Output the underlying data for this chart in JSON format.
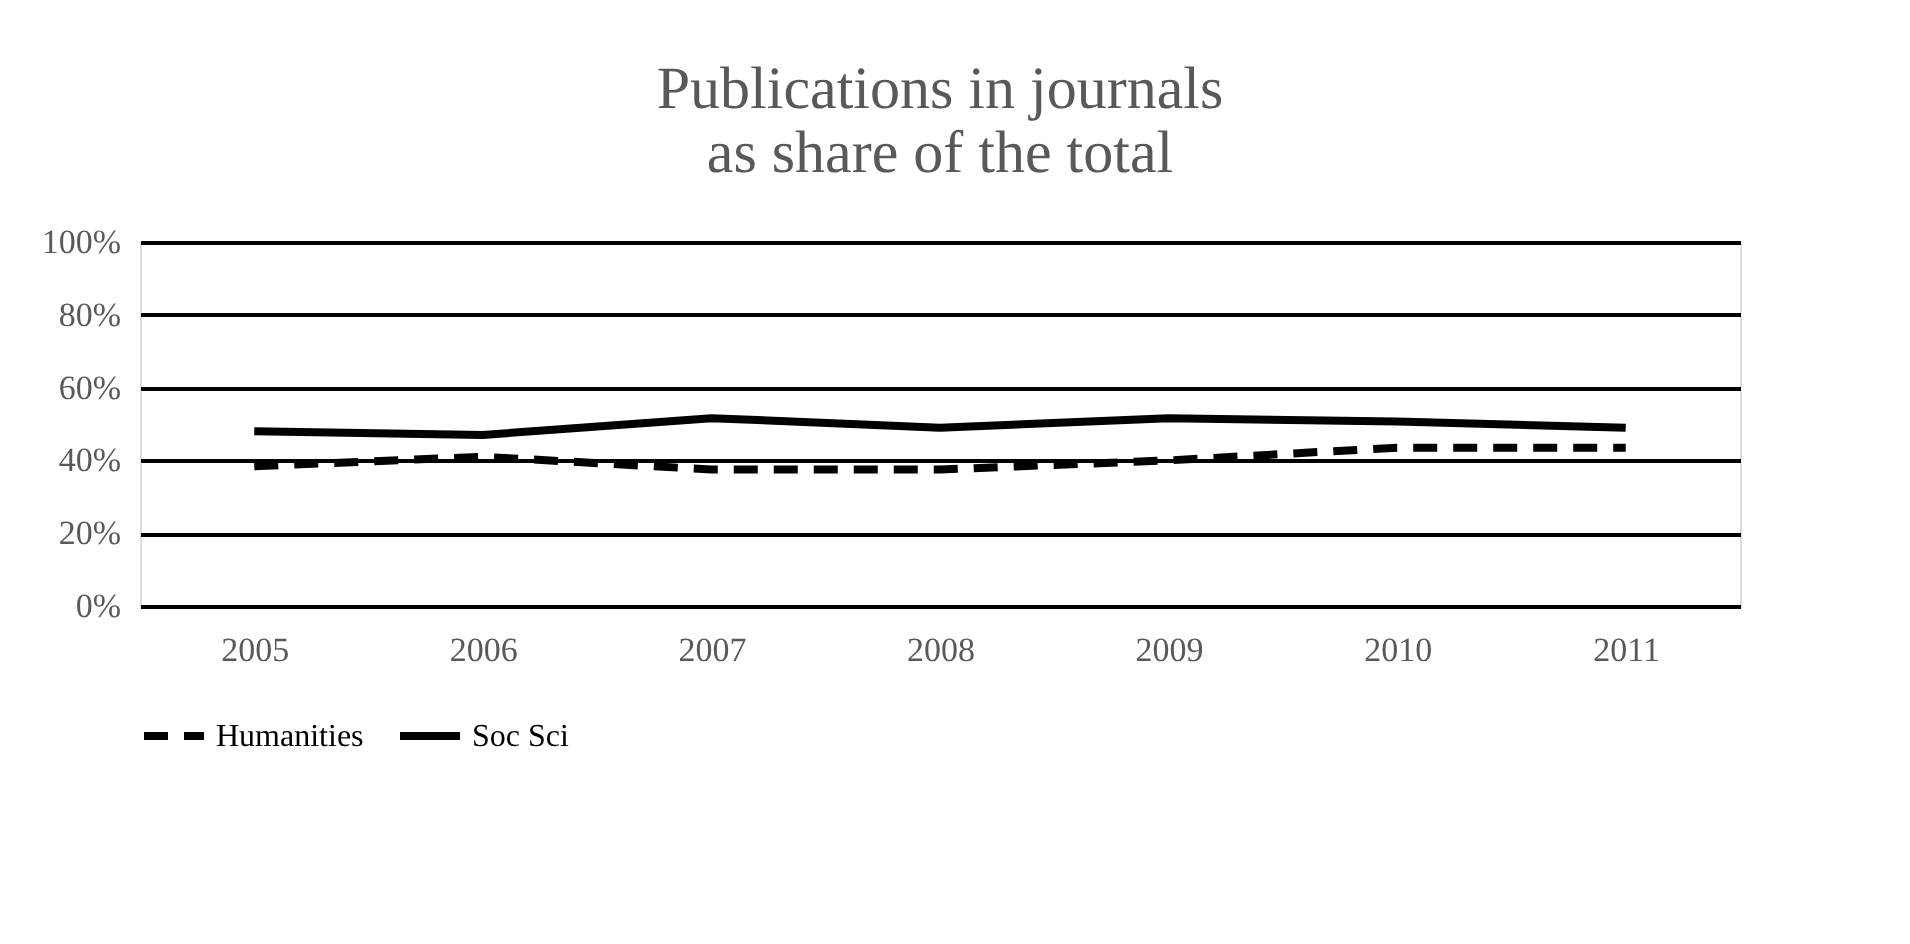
{
  "chart_data": {
    "type": "line",
    "title": "Publications in journals\nas share of the total",
    "categories": [
      "2005",
      "2006",
      "2007",
      "2008",
      "2009",
      "2010",
      "2011"
    ],
    "series": [
      {
        "name": "Humanities",
        "color": "#000000",
        "line_style": "dashed",
        "values": [
          38.4,
          41,
          37.5,
          37.5,
          40,
          43.5,
          43.5
        ]
      },
      {
        "name": "Soc Sci",
        "color": "#000000",
        "line_style": "solid",
        "values": [
          48,
          47,
          51.6,
          49,
          51.6,
          50.7,
          49
        ]
      }
    ],
    "ylim": [
      0,
      100
    ],
    "yticks": [
      {
        "value": 0,
        "label": "0%"
      },
      {
        "value": 20,
        "label": "20%"
      },
      {
        "value": 40,
        "label": "40%"
      },
      {
        "value": 60,
        "label": "60%"
      },
      {
        "value": 80,
        "label": "80%"
      },
      {
        "value": 100,
        "label": "100%"
      }
    ],
    "grid": "y",
    "legend": "bottom",
    "marker": "none"
  }
}
